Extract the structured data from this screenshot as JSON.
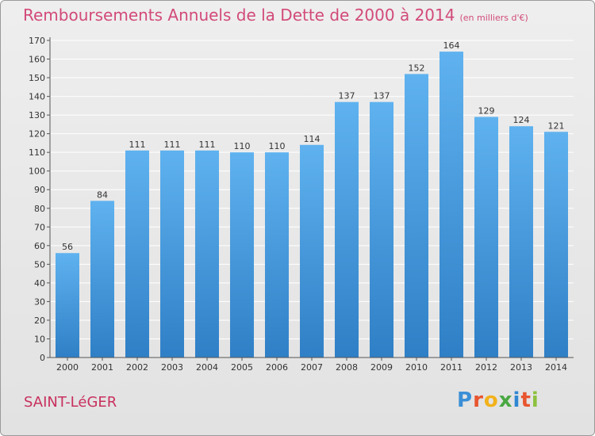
{
  "title": "Remboursements Annuels de la Dette de 2000 à 2014",
  "unit": "(en milliers d'€)",
  "place": "SAINT-LéGER",
  "logo": {
    "letters": [
      "P",
      "r",
      "o",
      "x",
      "i",
      "t",
      "i"
    ],
    "colors": [
      "#3a8fd6",
      "#e8552e",
      "#f2b21b",
      "#4aa843",
      "#2f87d2",
      "#e8552e",
      "#8cc13f"
    ]
  },
  "chart_data": {
    "type": "bar",
    "title": "Remboursements Annuels de la Dette de 2000 à 2014",
    "ylabel": "(en milliers d'€)",
    "categories": [
      "2000",
      "2001",
      "2002",
      "2003",
      "2004",
      "2005",
      "2006",
      "2007",
      "2008",
      "2009",
      "2010",
      "2011",
      "2012",
      "2013",
      "2014"
    ],
    "values": [
      56,
      84,
      111,
      111,
      111,
      110,
      110,
      114,
      137,
      137,
      152,
      164,
      129,
      124,
      121
    ],
    "ylim": [
      0,
      170
    ],
    "yticks": [
      0,
      10,
      20,
      30,
      40,
      50,
      60,
      70,
      80,
      90,
      100,
      110,
      120,
      130,
      140,
      150,
      160,
      170
    ],
    "grid": true,
    "colors": {
      "bar_top": "#5fb2ef",
      "bar_bottom": "#2f7fc6",
      "axis": "#555555",
      "grid": "#ffffff"
    }
  }
}
